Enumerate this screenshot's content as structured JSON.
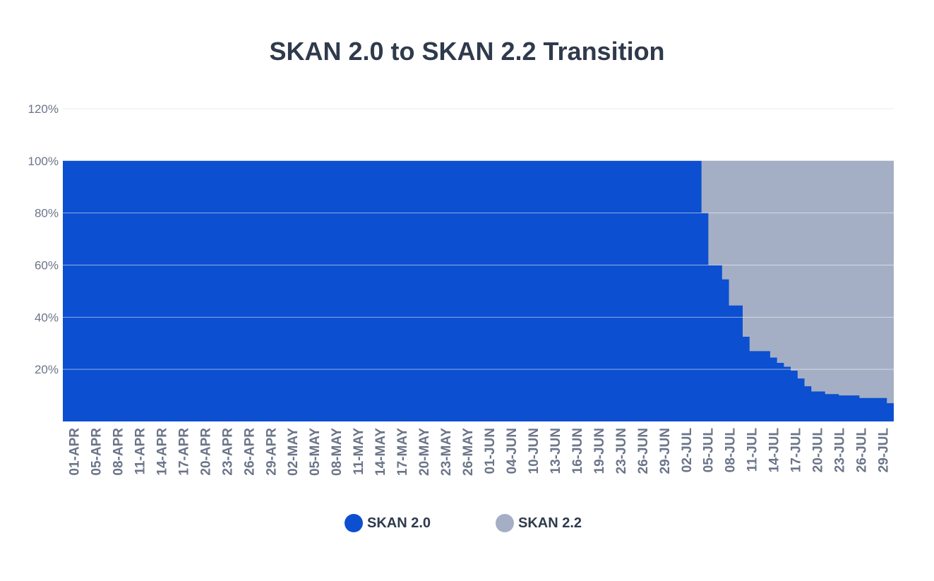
{
  "chart_data": {
    "type": "area",
    "stacked": true,
    "percent": true,
    "title": "SKAN 2.0 to SKAN 2.2 Transition",
    "xlabel": "",
    "ylabel": "",
    "ylim": [
      0,
      120
    ],
    "yticks": [
      "120%",
      "100%",
      "80%",
      "60%",
      "40%",
      "20%"
    ],
    "ytick_values": [
      120,
      100,
      80,
      60,
      40,
      20
    ],
    "start_date": "2021-04-01",
    "end_date": "2021-07-30",
    "xtick_labels": [
      "01-APR",
      "05-APR",
      "08-APR",
      "11-APR",
      "14-APR",
      "17-APR",
      "20-APR",
      "23-APR",
      "26-APR",
      "29-APR",
      "02-MAY",
      "05-MAY",
      "08-MAY",
      "11-MAY",
      "14-MAY",
      "17-MAY",
      "20-MAY",
      "23-MAY",
      "26-MAY",
      "01-JUN",
      "04-JUN",
      "10-JUN",
      "13-JUN",
      "16-JUN",
      "19-JUN",
      "23-JUN",
      "26-JUN",
      "29-JUN",
      "02-JUL",
      "05-JUL",
      "08-JUL",
      "11-JUL",
      "14-JUL",
      "17-JUL",
      "20-JUL",
      "23-JUL",
      "26-JUL",
      "29-JUL"
    ],
    "series": [
      {
        "name": "SKAN 2.0",
        "color": "#0c4fd0",
        "steps": [
          {
            "from": "2021-04-01",
            "value": 100
          },
          {
            "from": "2021-07-03",
            "value": 80
          },
          {
            "from": "2021-07-04",
            "value": 60
          },
          {
            "from": "2021-07-06",
            "value": 54.5
          },
          {
            "from": "2021-07-07",
            "value": 44.5
          },
          {
            "from": "2021-07-09",
            "value": 32.5
          },
          {
            "from": "2021-07-10",
            "value": 27
          },
          {
            "from": "2021-07-13",
            "value": 24.5
          },
          {
            "from": "2021-07-14",
            "value": 22.5
          },
          {
            "from": "2021-07-15",
            "value": 21
          },
          {
            "from": "2021-07-16",
            "value": 19.5
          },
          {
            "from": "2021-07-17",
            "value": 16.5
          },
          {
            "from": "2021-07-18",
            "value": 13.5
          },
          {
            "from": "2021-07-19",
            "value": 11.5
          },
          {
            "from": "2021-07-21",
            "value": 10.5
          },
          {
            "from": "2021-07-23",
            "value": 10
          },
          {
            "from": "2021-07-26",
            "value": 9
          },
          {
            "from": "2021-07-30",
            "value": 7
          }
        ]
      },
      {
        "name": "SKAN 2.2",
        "color": "#a4afc5",
        "note_is_remainder_to": 100
      }
    ],
    "grid": true,
    "legend_position": "bottom-center"
  }
}
